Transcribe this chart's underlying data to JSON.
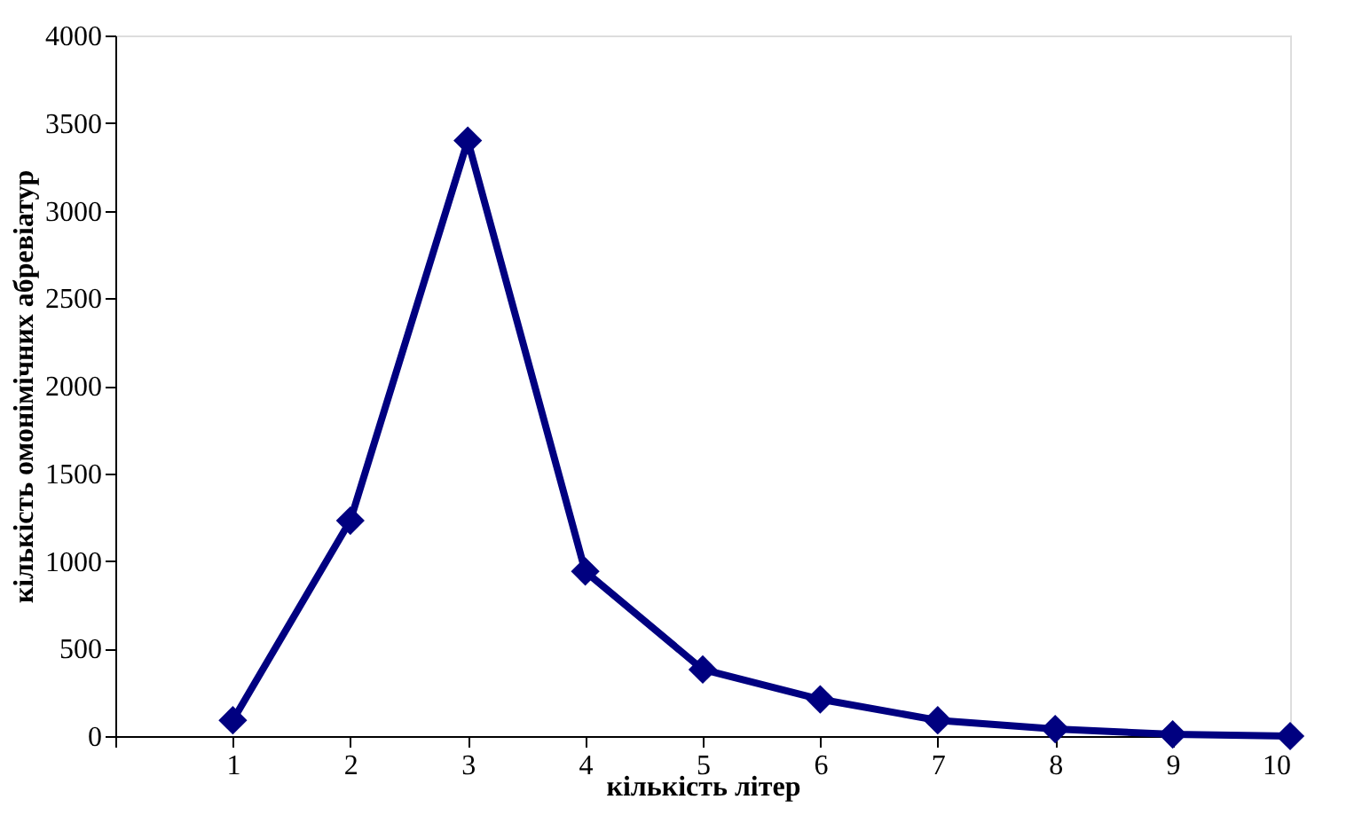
{
  "chart_data": {
    "type": "line",
    "xlabel": "кількість літер",
    "ylabel": "кількість омонімічних абревіатур",
    "x": [
      1,
      2,
      3,
      4,
      5,
      6,
      7,
      8,
      9,
      10
    ],
    "series": [
      {
        "color": "#000080",
        "values": [
          90,
          1230,
          3400,
          940,
          380,
          210,
          90,
          40,
          10,
          0
        ]
      }
    ],
    "xlim": [
      0,
      10
    ],
    "xticks": [
      {
        "value": 0,
        "label": null
      },
      1,
      2,
      3,
      4,
      5,
      6,
      7,
      8,
      9,
      10
    ],
    "ylim": [
      0,
      4000
    ],
    "yticks": [
      0,
      500,
      1000,
      1500,
      2000,
      2500,
      3000,
      3500,
      4000
    ],
    "grid": false,
    "marker": "diamond",
    "line_style": "solid"
  }
}
